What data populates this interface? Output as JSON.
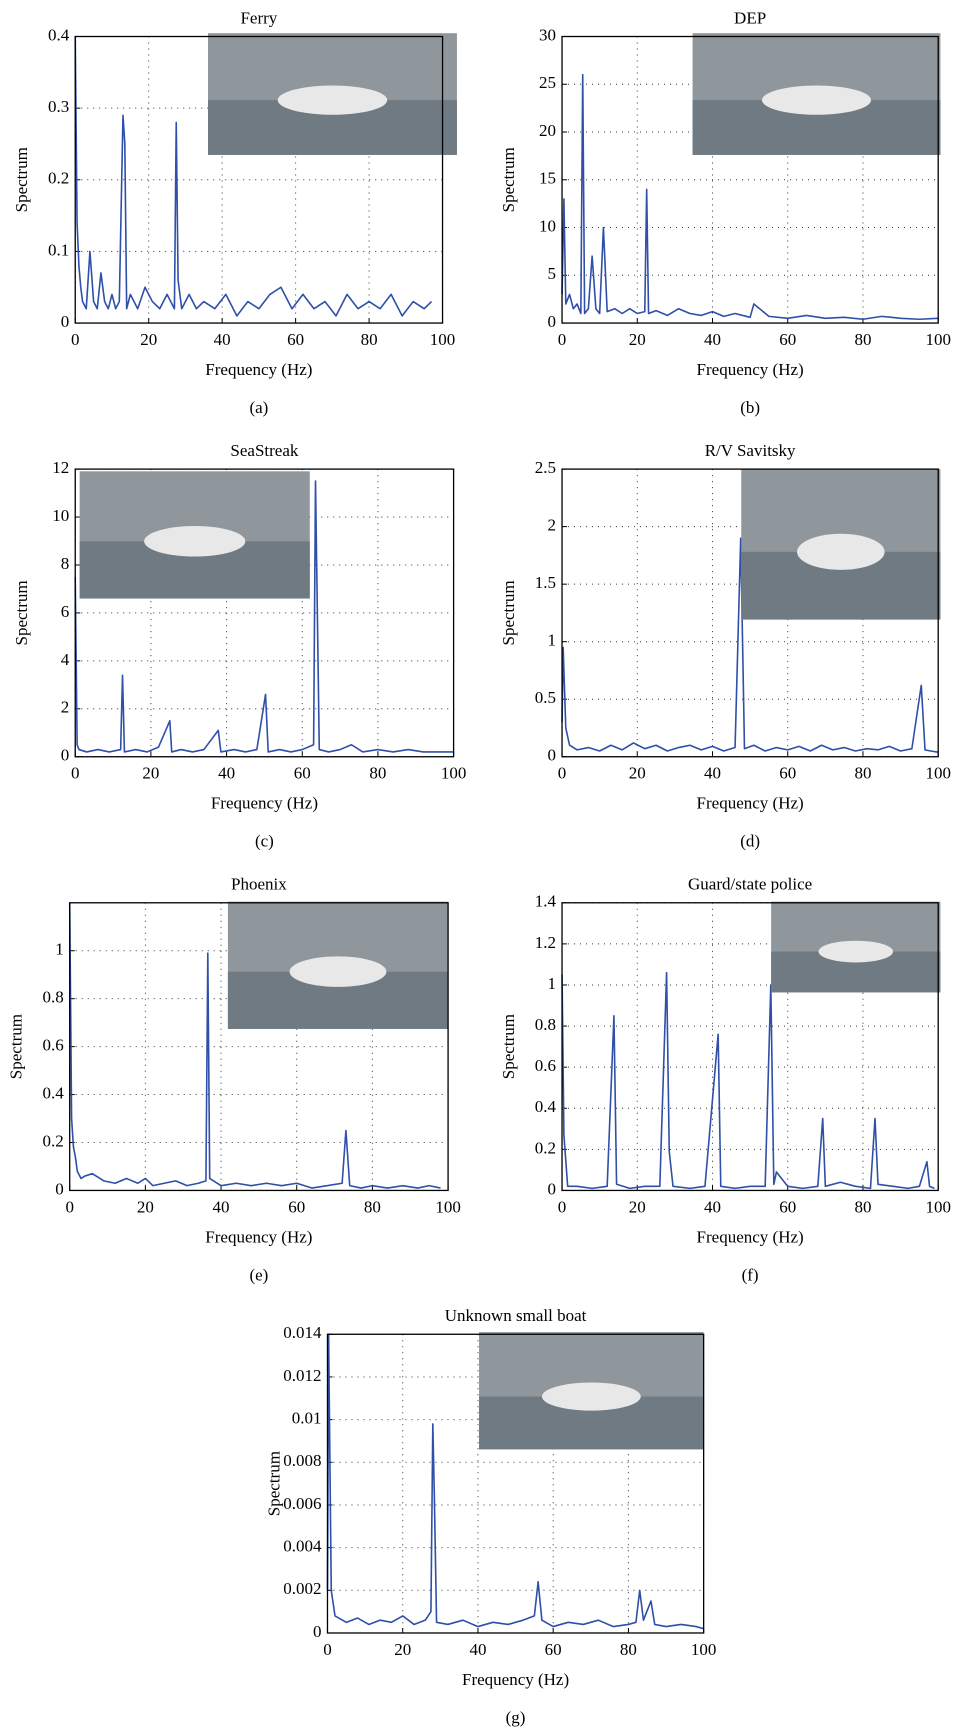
{
  "chart_data": [
    {
      "type": "line",
      "title": "Ferry",
      "caption": "(a)",
      "xlabel": "Frequency (Hz)",
      "ylabel": "Spectrum",
      "color": "#2f4fa8",
      "grid": true,
      "xlim": [
        0,
        100
      ],
      "xticks": [
        0,
        20,
        40,
        60,
        80,
        100
      ],
      "ylim": [
        0,
        0.4
      ],
      "yticks": [
        0,
        0.1,
        0.2,
        0.3,
        0.4
      ],
      "x": [
        0,
        0.5,
        1,
        1.5,
        2,
        3,
        4,
        5,
        6,
        7,
        8,
        9,
        10,
        11,
        12,
        13,
        13.5,
        14,
        15,
        17,
        19,
        21,
        23,
        25,
        27,
        27.5,
        28,
        29,
        31,
        33,
        35,
        38,
        41,
        44,
        47,
        50,
        53,
        56,
        59,
        62,
        65,
        68,
        71,
        74,
        77,
        80,
        83,
        86,
        89,
        92,
        95,
        97
      ],
      "values": [
        0.4,
        0.14,
        0.08,
        0.05,
        0.03,
        0.02,
        0.1,
        0.03,
        0.02,
        0.07,
        0.03,
        0.02,
        0.04,
        0.02,
        0.03,
        0.29,
        0.25,
        0.02,
        0.04,
        0.02,
        0.05,
        0.03,
        0.02,
        0.04,
        0.02,
        0.28,
        0.06,
        0.02,
        0.04,
        0.02,
        0.03,
        0.02,
        0.04,
        0.01,
        0.03,
        0.02,
        0.04,
        0.05,
        0.02,
        0.04,
        0.02,
        0.03,
        0.01,
        0.04,
        0.02,
        0.03,
        0.02,
        0.04,
        0.01,
        0.03,
        0.02,
        0.03
      ]
    },
    {
      "type": "line",
      "title": "DEP",
      "caption": "(b)",
      "xlabel": "Frequency (Hz)",
      "ylabel": "Spectrum",
      "color": "#2f4fa8",
      "grid": true,
      "xlim": [
        0,
        100
      ],
      "xticks": [
        0,
        20,
        40,
        60,
        80,
        100
      ],
      "ylim": [
        0,
        30
      ],
      "yticks": [
        0,
        5,
        10,
        15,
        20,
        25,
        30
      ],
      "x": [
        0,
        0.5,
        1,
        2,
        3,
        4,
        5,
        5.5,
        6,
        7,
        8,
        9,
        10,
        11,
        12,
        14,
        16,
        18,
        20,
        22,
        22.5,
        23,
        25,
        28,
        31,
        34,
        37,
        40,
        43,
        46,
        50,
        51,
        55,
        60,
        65,
        70,
        75,
        80,
        85,
        90,
        95,
        100
      ],
      "values": [
        3,
        13,
        2,
        3,
        1.5,
        2,
        1,
        26,
        1,
        1.5,
        7,
        1.5,
        1,
        10,
        1.2,
        1.5,
        1,
        1.5,
        1,
        1.2,
        14,
        1,
        1.3,
        0.8,
        1.5,
        1,
        0.8,
        1.2,
        0.7,
        1,
        0.6,
        2,
        0.7,
        0.5,
        0.8,
        0.5,
        0.6,
        0.4,
        0.7,
        0.5,
        0.4,
        0.5
      ]
    },
    {
      "type": "line",
      "title": "SeaStreak",
      "caption": "(c)",
      "xlabel": "Frequency (Hz)",
      "ylabel": "Spectrum",
      "color": "#2f4fa8",
      "grid": true,
      "xlim": [
        0,
        100
      ],
      "xticks": [
        0,
        20,
        40,
        60,
        80,
        100
      ],
      "ylim": [
        0,
        12
      ],
      "yticks": [
        0,
        2,
        4,
        6,
        8,
        10,
        12
      ],
      "x": [
        0,
        0.5,
        1,
        3,
        6,
        9,
        12,
        12.5,
        13,
        16,
        19,
        22,
        25,
        25.5,
        28,
        31,
        34,
        37.8,
        38.5,
        42,
        45,
        48,
        50.3,
        51,
        54,
        57,
        60,
        63,
        63.5,
        64.5,
        67,
        70,
        73,
        76,
        80,
        84,
        88,
        92,
        96,
        100
      ],
      "values": [
        7.5,
        0.5,
        0.3,
        0.2,
        0.3,
        0.2,
        0.3,
        3.4,
        0.2,
        0.3,
        0.2,
        0.4,
        1.5,
        0.2,
        0.3,
        0.2,
        0.3,
        1.1,
        0.2,
        0.3,
        0.2,
        0.3,
        2.6,
        0.2,
        0.3,
        0.2,
        0.3,
        0.5,
        11.5,
        0.3,
        0.2,
        0.3,
        0.5,
        0.2,
        0.3,
        0.2,
        0.3,
        0.2,
        0.2,
        0.2
      ]
    },
    {
      "type": "line",
      "title": "R/V Savitsky",
      "caption": "(d)",
      "xlabel": "Frequency (Hz)",
      "ylabel": "Spectrum",
      "color": "#2f4fa8",
      "grid": true,
      "xlim": [
        0,
        100
      ],
      "xticks": [
        0,
        20,
        40,
        60,
        80,
        100
      ],
      "ylim": [
        0,
        2.5
      ],
      "yticks": [
        0,
        0.5,
        1,
        1.5,
        2,
        2.5
      ],
      "x": [
        0,
        0.3,
        1,
        2,
        4,
        7,
        10,
        13,
        16,
        19,
        22,
        25,
        28,
        31,
        34,
        37,
        40,
        43,
        46,
        47.5,
        48.5,
        51,
        54,
        57,
        60,
        63,
        66,
        69,
        72,
        75,
        78,
        81,
        84,
        87,
        90,
        93,
        95.5,
        96.5,
        98,
        100
      ],
      "values": [
        0.3,
        0.95,
        0.25,
        0.1,
        0.06,
        0.08,
        0.05,
        0.1,
        0.06,
        0.12,
        0.07,
        0.1,
        0.05,
        0.08,
        0.1,
        0.06,
        0.09,
        0.05,
        0.08,
        1.9,
        0.07,
        0.1,
        0.05,
        0.08,
        0.06,
        0.09,
        0.05,
        0.1,
        0.06,
        0.08,
        0.05,
        0.07,
        0.06,
        0.09,
        0.05,
        0.07,
        0.62,
        0.06,
        0.05,
        0.04
      ]
    },
    {
      "type": "line",
      "title": "Phoenix",
      "caption": "(e)",
      "xlabel": "Frequency (Hz)",
      "ylabel": "Spectrum",
      "color": "#2f4fa8",
      "grid": true,
      "xlim": [
        0,
        100
      ],
      "xticks": [
        0,
        20,
        40,
        60,
        80,
        100
      ],
      "ylim": [
        0,
        1.2
      ],
      "yticks": [
        0,
        0.2,
        0.4,
        0.6,
        0.8,
        1
      ],
      "x": [
        0,
        0.5,
        1,
        1.5,
        2,
        3,
        4,
        6,
        9,
        12,
        15,
        18,
        20,
        22,
        25,
        28,
        31,
        34,
        36,
        36.5,
        37,
        40,
        44,
        48,
        52,
        56,
        60,
        64,
        68,
        72,
        73,
        74,
        77,
        80,
        84,
        88,
        92,
        95,
        98
      ],
      "values": [
        1.2,
        0.3,
        0.18,
        0.14,
        0.08,
        0.05,
        0.06,
        0.07,
        0.04,
        0.03,
        0.05,
        0.03,
        0.05,
        0.02,
        0.03,
        0.04,
        0.02,
        0.03,
        0.04,
        0.99,
        0.05,
        0.02,
        0.03,
        0.02,
        0.03,
        0.02,
        0.03,
        0.01,
        0.02,
        0.03,
        0.25,
        0.02,
        0.01,
        0.02,
        0.01,
        0.02,
        0.01,
        0.02,
        0.01
      ]
    },
    {
      "type": "line",
      "title": "Guard/state police",
      "caption": "(f)",
      "xlabel": "Frequency (Hz)",
      "ylabel": "Spectrum",
      "color": "#2f4fa8",
      "grid": true,
      "xlim": [
        0,
        100
      ],
      "xticks": [
        0,
        20,
        40,
        60,
        80,
        100
      ],
      "ylim": [
        0,
        1.4
      ],
      "yticks": [
        0,
        0.2,
        0.4,
        0.6,
        0.8,
        1,
        1.2,
        1.4
      ],
      "x": [
        0,
        0.5,
        1.5,
        4,
        8,
        12,
        13.8,
        14.5,
        18,
        22,
        26,
        27.8,
        28.5,
        29.5,
        34,
        38,
        41.5,
        42.2,
        46,
        50,
        54,
        55.5,
        56.3,
        57,
        60,
        64,
        68,
        69.3,
        70,
        74,
        78,
        82,
        83.2,
        84,
        88,
        92,
        95,
        97,
        97.7,
        99
      ],
      "values": [
        1.05,
        0.27,
        0.02,
        0.02,
        0.01,
        0.02,
        0.85,
        0.03,
        0.01,
        0.02,
        0.02,
        1.06,
        0.19,
        0.02,
        0.01,
        0.02,
        0.76,
        0.02,
        0.01,
        0.02,
        0.02,
        1.0,
        0.03,
        0.09,
        0.02,
        0.01,
        0.02,
        0.35,
        0.02,
        0.04,
        0.02,
        0.01,
        0.35,
        0.03,
        0.02,
        0.01,
        0.02,
        0.14,
        0.02,
        0.01
      ]
    },
    {
      "type": "line",
      "title": "Unknown small boat",
      "caption": "(g)",
      "xlabel": "Frequency (Hz)",
      "ylabel": "Spectrum",
      "color": "#2f4fa8",
      "grid": true,
      "xlim": [
        0,
        100
      ],
      "xticks": [
        0,
        20,
        40,
        60,
        80,
        100
      ],
      "ylim": [
        0,
        0.014
      ],
      "yticks": [
        0,
        0.002,
        0.004,
        0.006,
        0.008,
        0.01,
        0.012,
        0.014
      ],
      "x": [
        0,
        0.3,
        1,
        2,
        5,
        8,
        11,
        14,
        17,
        20,
        23,
        26,
        27.5,
        28,
        28.4,
        29,
        32,
        36,
        40,
        44,
        48,
        52,
        55,
        56,
        57,
        60,
        64,
        68,
        72,
        76,
        80,
        82,
        83,
        84,
        86,
        87,
        90,
        94,
        98,
        100
      ],
      "values": [
        0.002,
        0.014,
        0.002,
        0.0008,
        0.0005,
        0.0007,
        0.0004,
        0.0006,
        0.0005,
        0.0008,
        0.0004,
        0.0006,
        0.001,
        0.0098,
        0.0065,
        0.0005,
        0.0004,
        0.0006,
        0.0003,
        0.0005,
        0.0004,
        0.0006,
        0.0008,
        0.0024,
        0.0006,
        0.0003,
        0.0005,
        0.0004,
        0.0006,
        0.0003,
        0.0004,
        0.0005,
        0.002,
        0.0006,
        0.0015,
        0.0004,
        0.0003,
        0.0004,
        0.0003,
        0.0002
      ]
    }
  ]
}
